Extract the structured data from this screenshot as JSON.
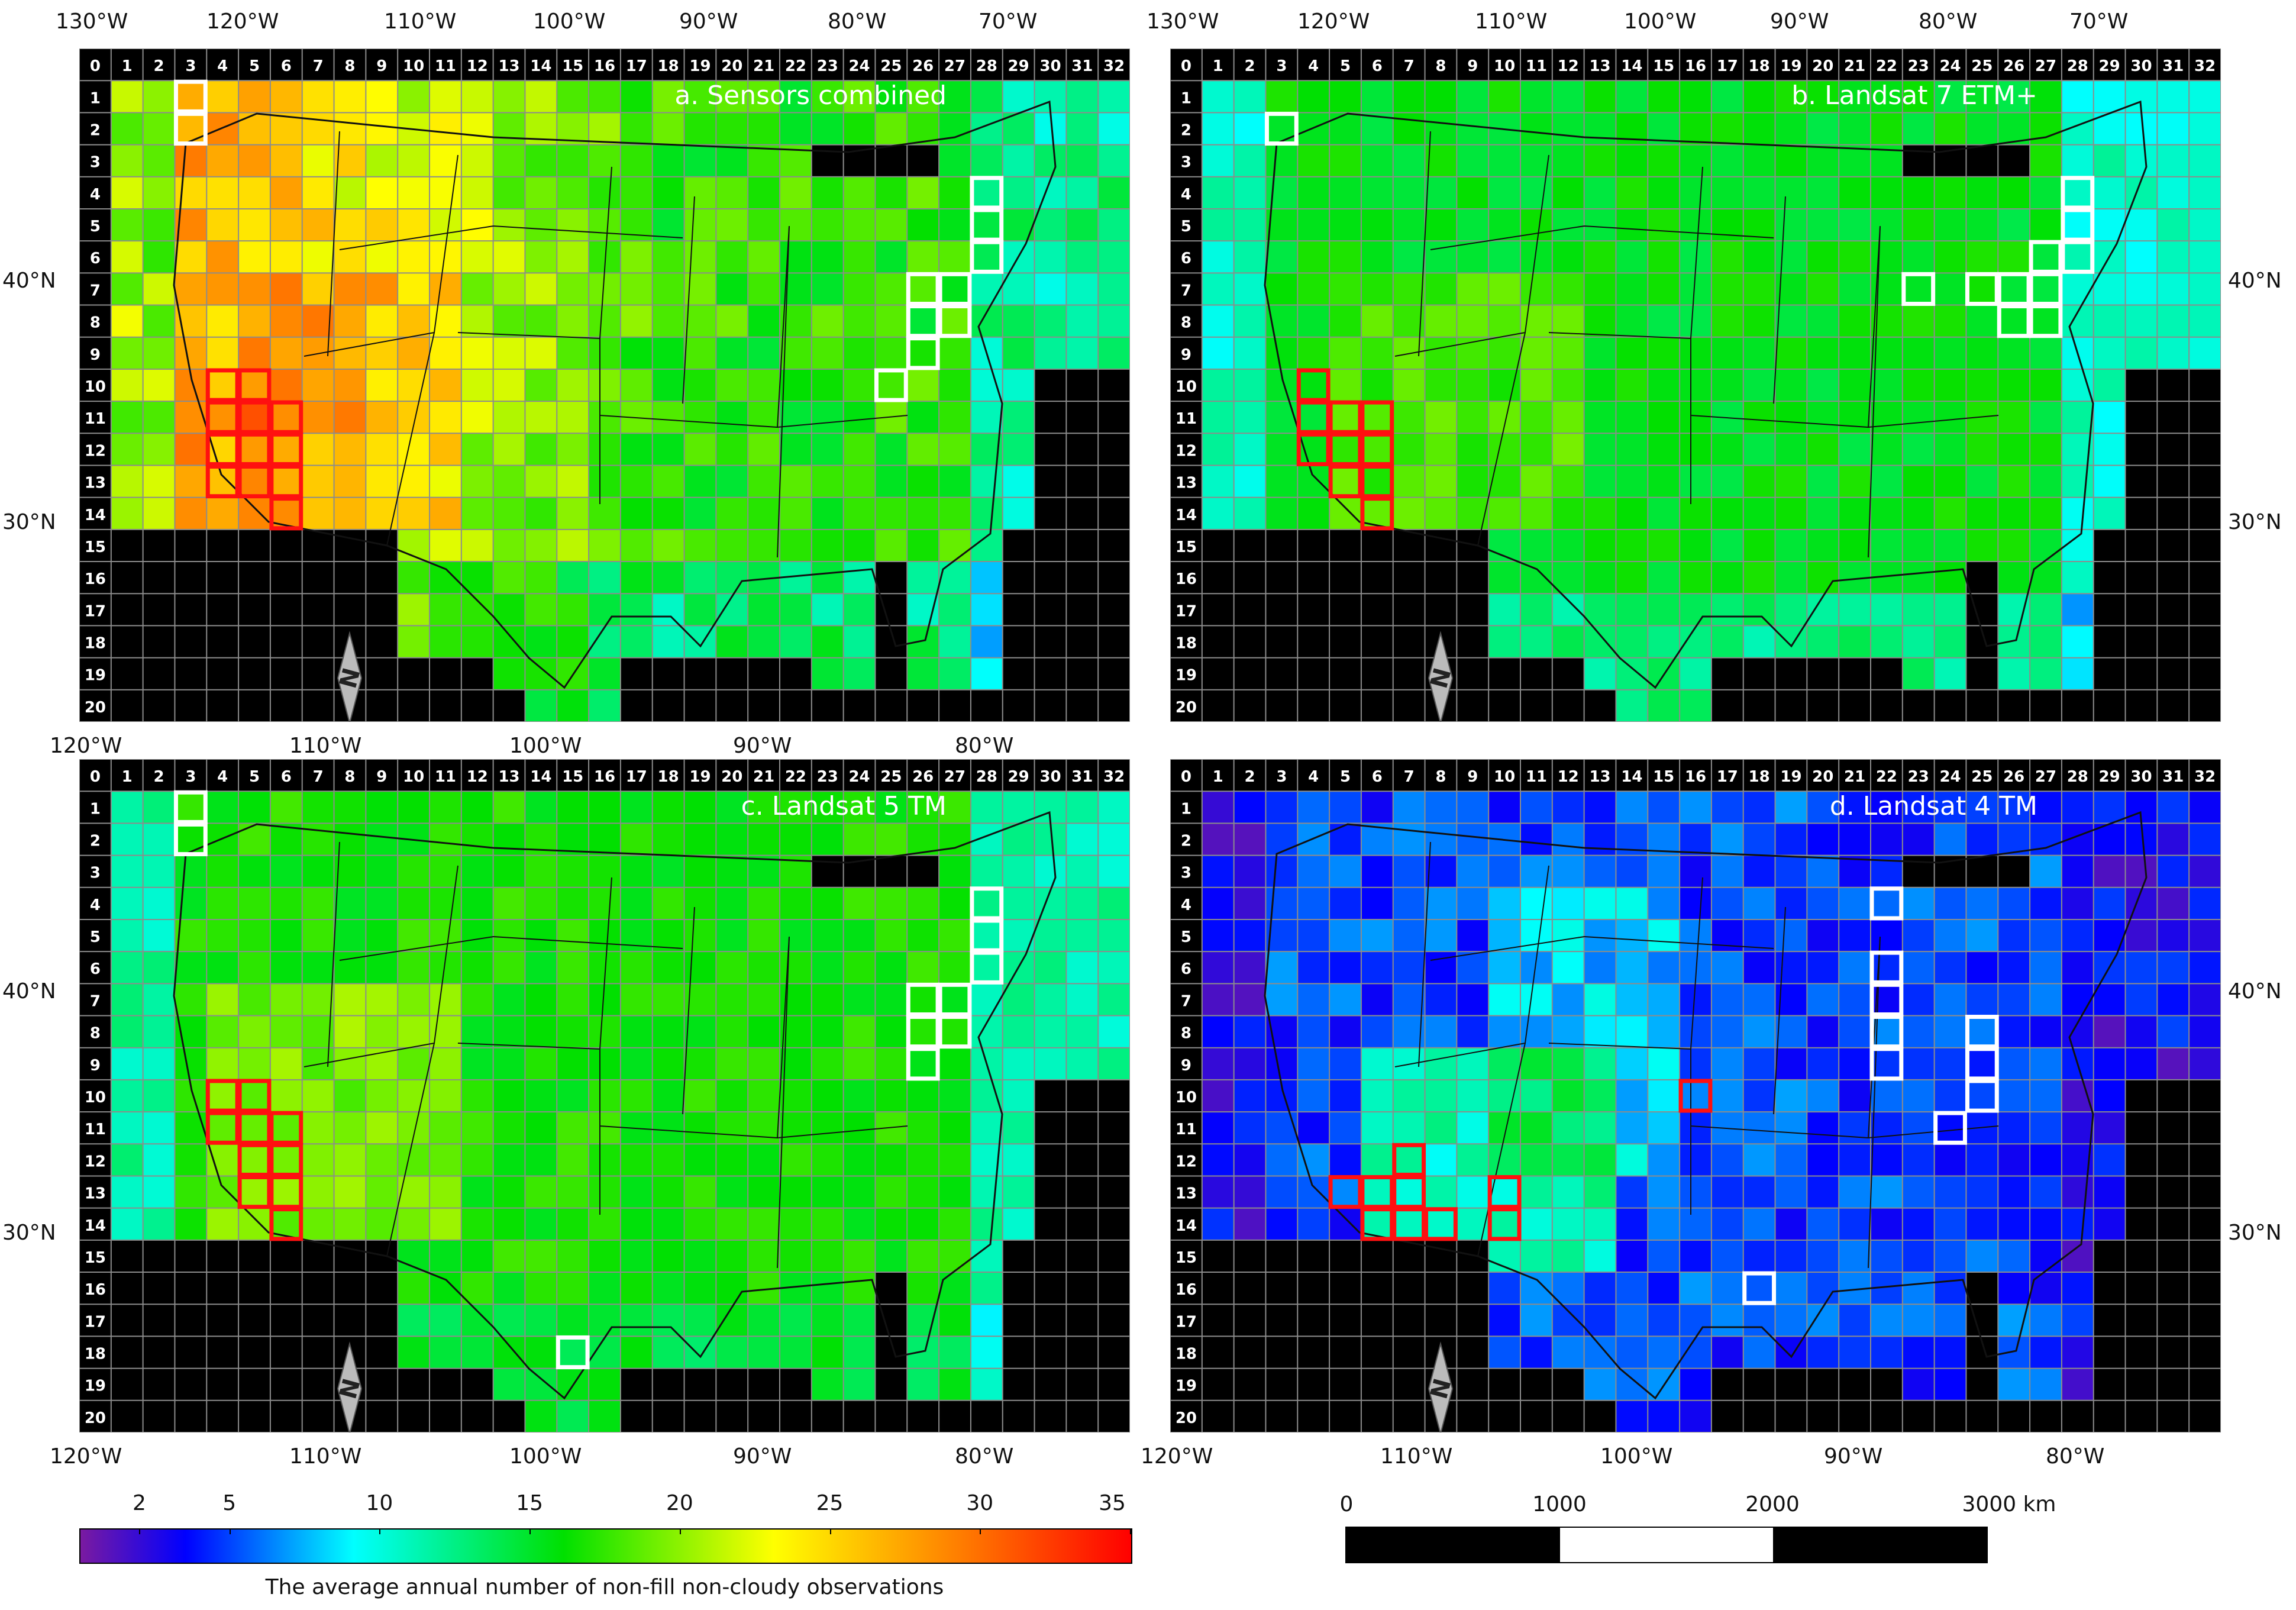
{
  "panels": [
    {
      "id": "a",
      "title": "a. Sensors combined",
      "top_lon": [
        "130°W",
        "120°W",
        "110°W",
        "100°W",
        "90°W",
        "80°W",
        "70°W"
      ],
      "bottom_lon": [
        "120°W",
        "110°W",
        "100°W",
        "90°W",
        "80°W"
      ],
      "lat": [
        "40°N",
        "30°N"
      ],
      "lat_side": "left"
    },
    {
      "id": "b",
      "title": "b. Landsat 7 ETM+",
      "top_lon": [
        "130°W",
        "120°W",
        "110°W",
        "100°W",
        "90°W",
        "80°W",
        "70°W"
      ],
      "bottom_lon": [],
      "lat": [
        "40°N",
        "30°N"
      ],
      "lat_side": "right"
    },
    {
      "id": "c",
      "title": "c. Landsat 5 TM",
      "top_lon": [],
      "bottom_lon": [
        "120°W",
        "110°W",
        "100°W",
        "90°W",
        "80°W"
      ],
      "lat": [
        "40°N",
        "30°N"
      ],
      "lat_side": "left"
    },
    {
      "id": "d",
      "title": "d. Landsat 4 TM",
      "top_lon": [],
      "bottom_lon": [
        "120°W",
        "110°W",
        "100°W",
        "90°W",
        "80°W"
      ],
      "lat": [
        "40°N",
        "30°N"
      ],
      "lat_side": "right"
    }
  ],
  "column_labels": [
    "0",
    "1",
    "2",
    "3",
    "4",
    "5",
    "6",
    "7",
    "8",
    "9",
    "10",
    "11",
    "12",
    "13",
    "14",
    "15",
    "16",
    "17",
    "18",
    "19",
    "20",
    "21",
    "22",
    "23",
    "24",
    "25",
    "26",
    "27",
    "28",
    "29",
    "30",
    "31",
    "32"
  ],
  "row_labels": [
    "0",
    "1",
    "2",
    "3",
    "4",
    "5",
    "6",
    "7",
    "8",
    "9",
    "10",
    "11",
    "12",
    "13",
    "14",
    "15",
    "16",
    "17",
    "18",
    "19",
    "20"
  ],
  "north_arrow": "N",
  "colorbar": {
    "ticks": [
      "2",
      "5",
      "10",
      "15",
      "20",
      "25",
      "30",
      "35"
    ],
    "tick_values": [
      2,
      5,
      10,
      15,
      20,
      25,
      30,
      35
    ],
    "range": [
      0,
      35
    ],
    "title": "The average annual number of non-fill non-cloudy observations"
  },
  "scalebar": {
    "labels": [
      "0",
      "1000",
      "2000",
      "3000 km"
    ]
  }
}
